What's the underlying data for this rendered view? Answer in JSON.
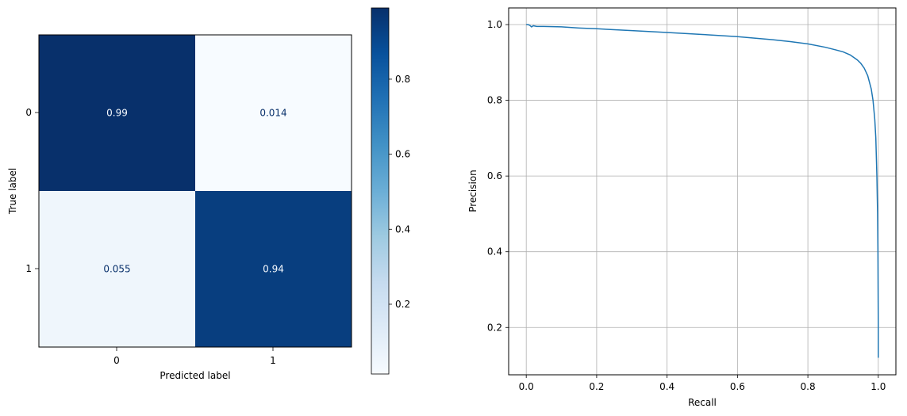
{
  "chart_data": [
    {
      "type": "heatmap",
      "title": "",
      "xlabel": "Predicted label",
      "ylabel": "True label",
      "x_categories": [
        "0",
        "1"
      ],
      "y_categories": [
        "0",
        "1"
      ],
      "values": [
        [
          0.99,
          0.014
        ],
        [
          0.055,
          0.94
        ]
      ],
      "cell_labels": [
        [
          "0.99",
          "0.014"
        ],
        [
          "0.055",
          "0.94"
        ]
      ],
      "colormap": "Blues",
      "colorbar": {
        "range": [
          0.014,
          0.99
        ],
        "ticks": [
          0.2,
          0.4,
          0.6,
          0.8
        ],
        "tick_labels": [
          "0.2",
          "0.4",
          "0.6",
          "0.8"
        ]
      },
      "grid": false
    },
    {
      "type": "line",
      "title": "",
      "xlabel": "Recall",
      "ylabel": "Precision",
      "xlim": [
        -0.05,
        1.05
      ],
      "ylim": [
        0.075,
        1.044
      ],
      "x_ticks": [
        0.0,
        0.2,
        0.4,
        0.6,
        0.8,
        1.0
      ],
      "x_tick_labels": [
        "0.0",
        "0.2",
        "0.4",
        "0.6",
        "0.8",
        "1.0"
      ],
      "y_ticks": [
        0.2,
        0.4,
        0.6,
        0.8,
        1.0
      ],
      "y_tick_labels": [
        "0.2",
        "0.4",
        "0.6",
        "0.8",
        "1.0"
      ],
      "grid": true,
      "color": "#1f77b4",
      "series": [
        {
          "x": [
            0.0,
            0.005,
            0.01,
            0.015,
            0.02,
            0.03,
            0.05,
            0.1,
            0.15,
            0.2,
            0.3,
            0.4,
            0.5,
            0.6,
            0.7,
            0.75,
            0.8,
            0.85,
            0.88,
            0.9,
            0.92,
            0.94,
            0.95,
            0.96,
            0.97,
            0.98,
            0.985,
            0.99,
            0.993,
            0.996,
            0.998,
            0.999,
            1.0,
            1.0
          ],
          "y": [
            1.0,
            1.0,
            0.998,
            0.994,
            0.997,
            0.995,
            0.995,
            0.994,
            0.991,
            0.989,
            0.984,
            0.979,
            0.974,
            0.968,
            0.96,
            0.955,
            0.949,
            0.94,
            0.933,
            0.928,
            0.92,
            0.907,
            0.898,
            0.885,
            0.865,
            0.83,
            0.8,
            0.75,
            0.7,
            0.6,
            0.5,
            0.4,
            0.2,
            0.12
          ]
        }
      ]
    }
  ]
}
